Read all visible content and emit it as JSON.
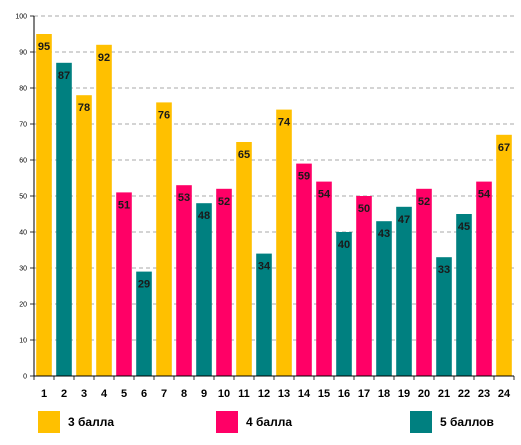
{
  "chart_data": {
    "type": "bar",
    "title": "",
    "xlabel": "",
    "ylabel": "",
    "ylim": [
      0,
      100
    ],
    "yticks": [
      0,
      10,
      20,
      30,
      40,
      50,
      60,
      70,
      80,
      90,
      100
    ],
    "grid": true,
    "legend_position": "bottom",
    "categories": [
      "1",
      "2",
      "3",
      "4",
      "5",
      "6",
      "7",
      "8",
      "9",
      "10",
      "11",
      "12",
      "13",
      "14",
      "15",
      "16",
      "17",
      "18",
      "19",
      "20",
      "21",
      "22",
      "23",
      "24"
    ],
    "values": [
      95,
      87,
      78,
      92,
      51,
      29,
      76,
      53,
      48,
      52,
      65,
      34,
      74,
      59,
      54,
      40,
      50,
      43,
      47,
      52,
      33,
      45,
      54,
      67
    ],
    "groups": [
      "g3",
      "g5",
      "g3",
      "g3",
      "g4",
      "g5",
      "g3",
      "g4",
      "g5",
      "g4",
      "g3",
      "g5",
      "g3",
      "g4",
      "g4",
      "g5",
      "g4",
      "g5",
      "g5",
      "g4",
      "g5",
      "g5",
      "g4",
      "g3"
    ],
    "legend": [
      {
        "id": "g3",
        "name": "3 балла",
        "color": "#FFC000"
      },
      {
        "id": "g4",
        "name": "4 балла",
        "color": "#FF0066"
      },
      {
        "id": "g5",
        "name": "5 баллов",
        "color": "#008080"
      }
    ]
  }
}
